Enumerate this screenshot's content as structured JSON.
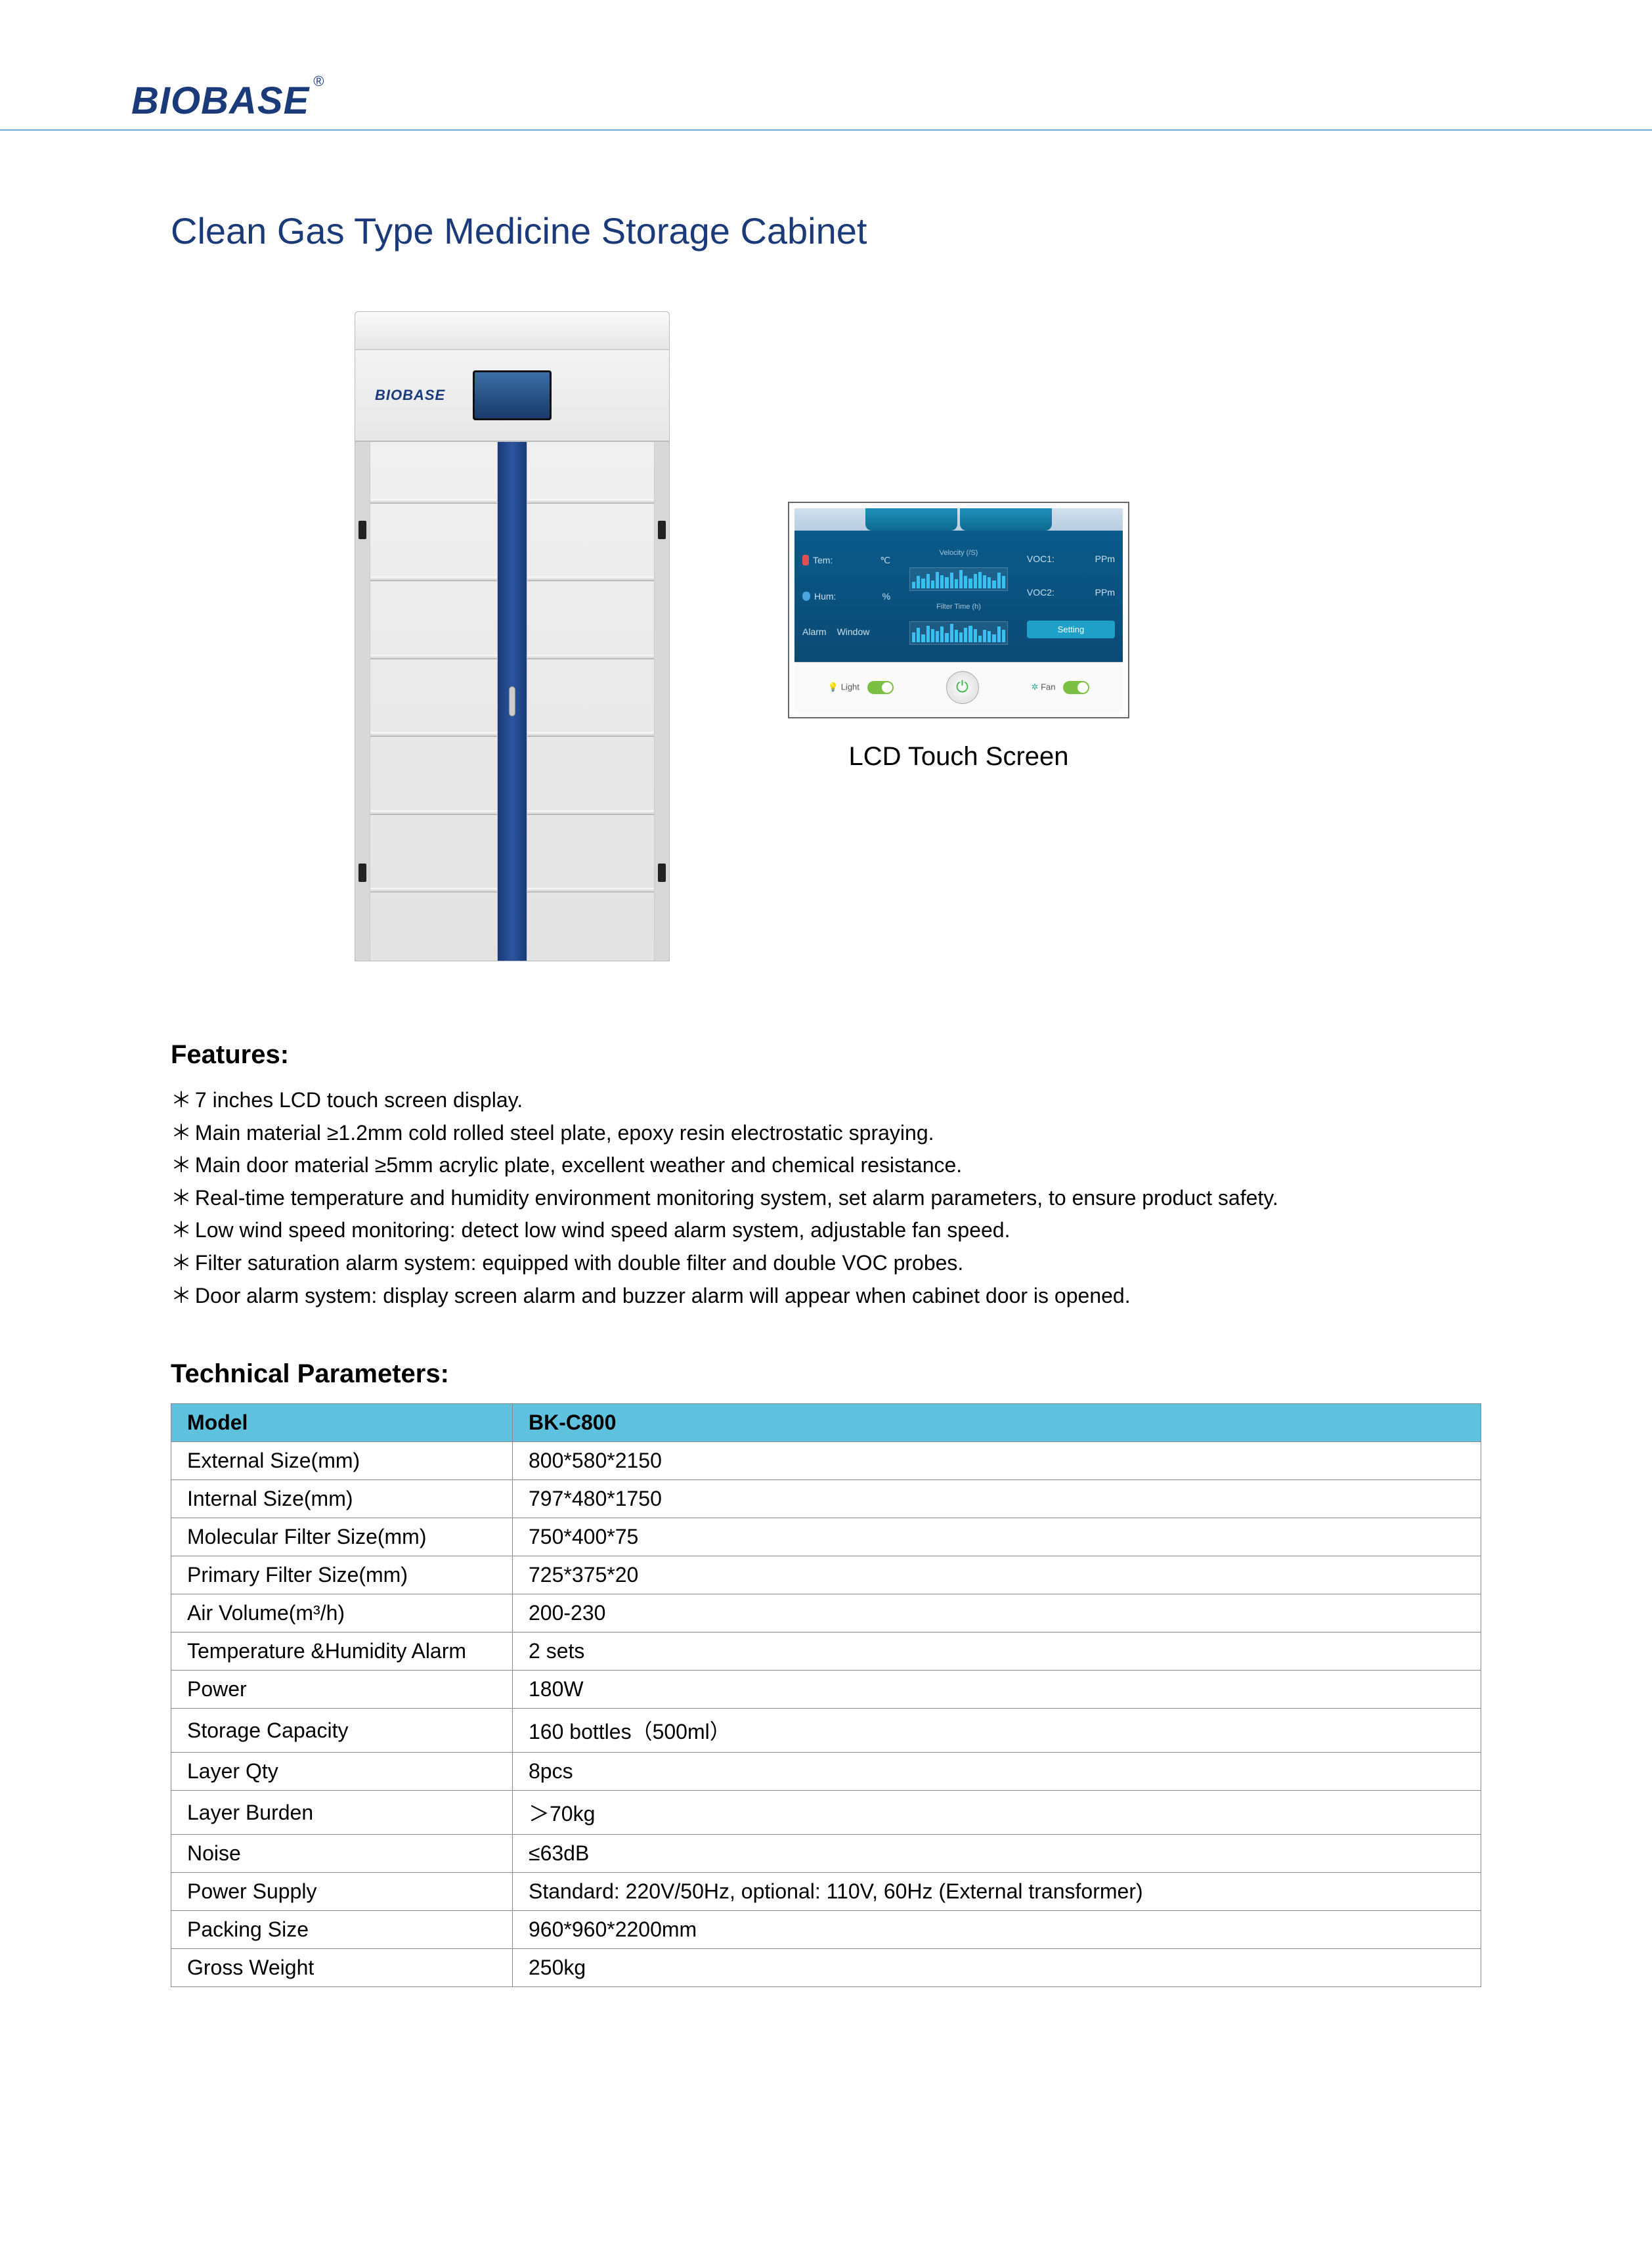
{
  "brand": "BIOBASE",
  "reg_mark": "®",
  "title": "Clean Gas Type Medicine Storage Cabinet",
  "cabinet_brand": "BIOBASE",
  "lcd": {
    "caption": "LCD Touch Screen",
    "tem_label": "Tem:",
    "tem_unit": "℃",
    "hum_label": "Hum:",
    "hum_unit": "%",
    "alarm_label": "Alarm",
    "window_label": "Window",
    "velocity_label": "Velocity (/S)",
    "filter_time_label": "Filter Time (h)",
    "voc1_label": "VOC1:",
    "voc1_unit": "PPm",
    "voc2_label": "VOC2:",
    "voc2_unit": "PPm",
    "setting_label": "Setting",
    "light_label": "Light",
    "fan_label": "Fan",
    "barchart_bars": [
      12,
      22,
      18,
      26,
      14,
      30,
      24,
      20,
      28,
      16,
      34,
      22,
      18,
      26,
      30,
      24,
      20,
      14,
      28,
      22
    ],
    "barchart2_bars": [
      18,
      26,
      14,
      30,
      24,
      20,
      28,
      16,
      34,
      22,
      18,
      26,
      30,
      24,
      12,
      22,
      20,
      14,
      28,
      22
    ],
    "colors": {
      "panel_bg": "#0b4a74",
      "tab_bg": "#1e8fb8",
      "bar_color": "#38c0f0"
    }
  },
  "features_heading": "Features:",
  "features": [
    "7 inches LCD touch screen display.",
    "Main material ≥1.2mm cold rolled steel plate, epoxy resin electrostatic spraying.",
    "Main door material ≥5mm acrylic plate, excellent weather and chemical resistance.",
    "Real-time temperature and humidity environment monitoring system, set alarm parameters, to ensure product safety.",
    "Low wind speed monitoring: detect low wind speed alarm system, adjustable fan speed.",
    "Filter saturation alarm system: equipped with double filter and double VOC probes.",
    "Door alarm system: display screen alarm and buzzer alarm will appear when cabinet door is opened."
  ],
  "params_heading": "Technical Parameters:",
  "table": {
    "header": [
      "Model",
      "BK-C800"
    ],
    "rows": [
      [
        "External Size(mm)",
        "800*580*2150"
      ],
      [
        "Internal Size(mm)",
        "797*480*1750"
      ],
      [
        "Molecular Filter Size(mm)",
        "750*400*75"
      ],
      [
        "Primary Filter Size(mm)",
        "725*375*20"
      ],
      [
        "Air Volume(m³/h)",
        "200-230"
      ],
      [
        "Temperature &Humidity Alarm",
        "2 sets"
      ],
      [
        "Power",
        "180W"
      ],
      [
        "Storage Capacity",
        "160 bottles（500ml）"
      ],
      [
        "Layer Qty",
        "8pcs"
      ],
      [
        "Layer Burden",
        "＞70kg"
      ],
      [
        "Noise",
        "≤63dB"
      ],
      [
        "Power Supply",
        "Standard: 220V/50Hz, optional: 110V, 60Hz (External transformer)"
      ],
      [
        "Packing Size",
        "960*960*2200mm"
      ],
      [
        " Gross Weight",
        "250kg"
      ]
    ]
  },
  "shelves_top_pct": [
    11,
    26,
    41,
    56,
    71,
    86
  ]
}
